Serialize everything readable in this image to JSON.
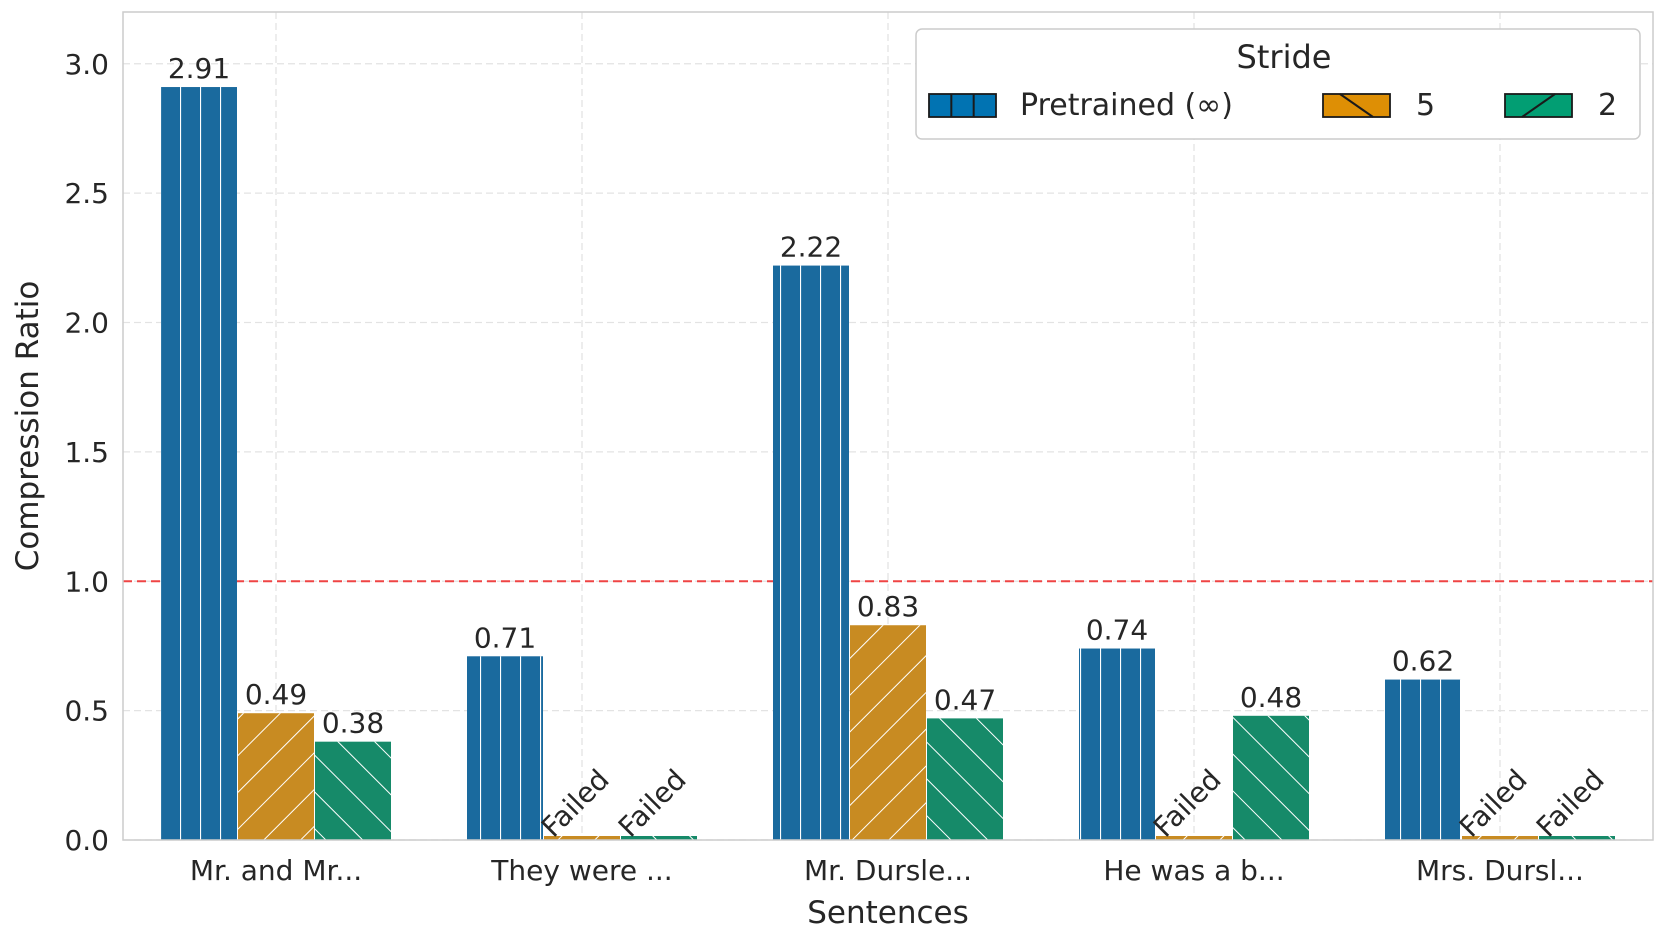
{
  "chart_data": {
    "type": "bar",
    "title": "",
    "xlabel": "Sentences",
    "ylabel": "Compression Ratio",
    "categories": [
      "Mr. and Mr...",
      "They were ...",
      "Mr. Dursle...",
      "He was a b...",
      "Mrs. Dursl..."
    ],
    "series": [
      {
        "name": "Pretrained (∞)",
        "color": "#1a6a9e",
        "legend_color": "#0173b2",
        "hatch": "vertical",
        "values": [
          2.91,
          0.71,
          2.22,
          0.74,
          0.62
        ],
        "labels": [
          "2.91",
          "0.71",
          "2.22",
          "0.74",
          "0.62"
        ]
      },
      {
        "name": "5",
        "color": "#c88b22",
        "legend_color": "#de8f05",
        "hatch": "backslash",
        "values": [
          0.49,
          0.0,
          0.83,
          0.0,
          0.0
        ],
        "labels": [
          "0.49",
          "Failed",
          "0.83",
          "Failed",
          "Failed"
        ]
      },
      {
        "name": "2",
        "color": "#168a69",
        "legend_color": "#029e73",
        "hatch": "slash",
        "values": [
          0.38,
          0.0,
          0.47,
          0.48,
          0.0
        ],
        "labels": [
          "0.38",
          "Failed",
          "0.47",
          "0.48",
          "Failed"
        ]
      }
    ],
    "failed_label": "Failed",
    "ylim": [
      0,
      3.2
    ],
    "yticks": [
      0.0,
      0.5,
      1.0,
      1.5,
      2.0,
      2.5,
      3.0
    ],
    "ytick_labels": [
      "0.0",
      "0.5",
      "1.0",
      "1.5",
      "2.0",
      "2.5",
      "3.0"
    ],
    "reference_line": {
      "value": 1.0,
      "color": "#ef4444",
      "style": "dashed"
    },
    "legend": {
      "title": "Stride",
      "position": "top-right"
    },
    "grid": true
  }
}
